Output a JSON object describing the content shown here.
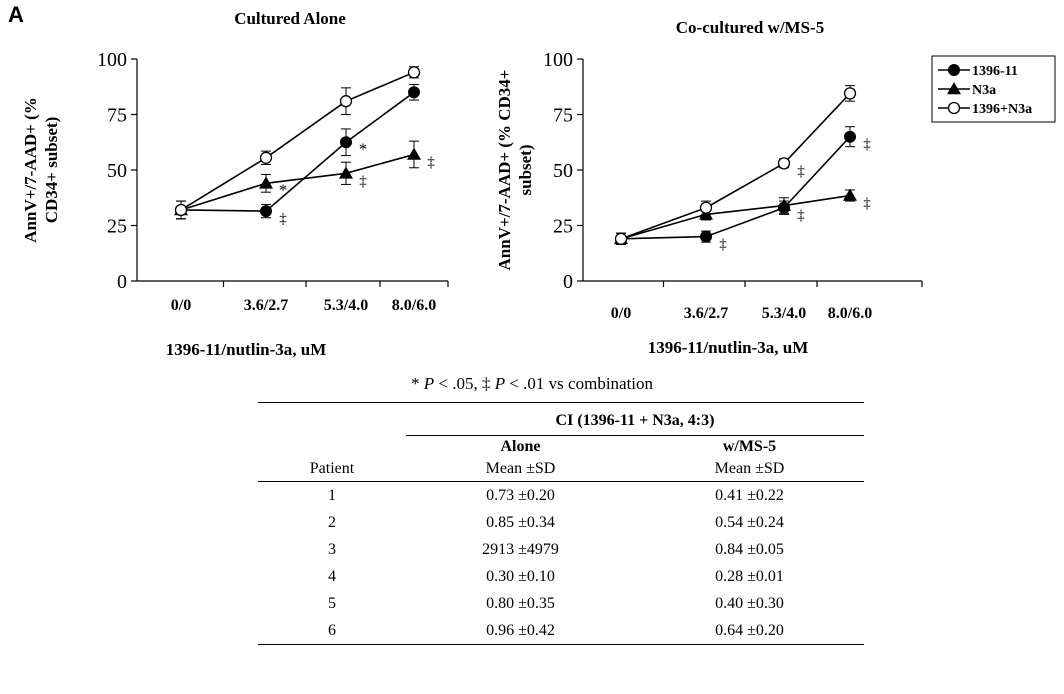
{
  "panel_letter": "A",
  "legend": {
    "entries": [
      {
        "label": "1396-11",
        "marker": "filled-circle-icon"
      },
      {
        "label": "N3a",
        "marker": "filled-triangle-icon"
      },
      {
        "label": "1396+N3a",
        "marker": "open-circle-icon"
      }
    ]
  },
  "chart_data": [
    {
      "type": "line",
      "title": "Cultured Alone",
      "xlabel": "1396-11/nutlin-3a, uM",
      "ylabel": "AnnV+/7-AAD+ (% CD34+ subset)",
      "categories": [
        "0/0",
        "3.6/2.7",
        "5.3/4.0",
        "8.0/6.0"
      ],
      "ylim": [
        0,
        100
      ],
      "yticks": [
        "0",
        "25",
        "50",
        "75",
        "100"
      ],
      "series": [
        {
          "name": "1396-11",
          "marker": "filled-circle",
          "values": [
            32,
            31.5,
            62.5,
            85
          ],
          "errors": [
            4,
            3,
            6,
            3.5
          ]
        },
        {
          "name": "N3a",
          "marker": "filled-triangle",
          "values": [
            32,
            44,
            48.5,
            57
          ],
          "errors": [
            4,
            4,
            5,
            6
          ]
        },
        {
          "name": "1396+N3a",
          "marker": "open-circle",
          "values": [
            32,
            55.5,
            81,
            94
          ],
          "errors": [
            4,
            3,
            6,
            2.5
          ]
        }
      ],
      "annotations": [
        {
          "text": "‡",
          "category": "3.6/2.7",
          "series": "1396-11"
        },
        {
          "text": "*",
          "category": "3.6/2.7",
          "series": "N3a"
        },
        {
          "text": "*",
          "category": "5.3/4.0",
          "series": "1396-11"
        },
        {
          "text": "‡",
          "category": "5.3/4.0",
          "series": "N3a"
        },
        {
          "text": "‡",
          "category": "8.0/6.0",
          "series": "N3a"
        }
      ]
    },
    {
      "type": "line",
      "title": "Co-cultured w/MS-5",
      "xlabel": "1396-11/nutlin-3a, uM",
      "ylabel": "AnnV+/7-AAD+ (% CD34+ subset)",
      "categories": [
        "0/0",
        "3.6/2.7",
        "5.3/4.0",
        "8.0/6.0"
      ],
      "ylim": [
        0,
        100
      ],
      "yticks": [
        "0",
        "25",
        "50",
        "75",
        "100"
      ],
      "series": [
        {
          "name": "1396-11",
          "marker": "filled-circle",
          "values": [
            19,
            20,
            33,
            65
          ],
          "errors": [
            2.5,
            2.5,
            3,
            4.5
          ]
        },
        {
          "name": "N3a",
          "marker": "filled-triangle",
          "values": [
            19,
            30,
            34,
            38.5
          ],
          "errors": [
            2.5,
            2.5,
            3.5,
            2.5
          ]
        },
        {
          "name": "1396+N3a",
          "marker": "open-circle",
          "values": [
            19,
            33,
            53,
            84.5
          ],
          "errors": [
            2.5,
            3,
            2,
            3.5
          ]
        }
      ],
      "annotations": [
        {
          "text": "‡",
          "category": "3.6/2.7",
          "series": "1396-11"
        },
        {
          "text": "‡",
          "category": "5.3/4.0",
          "series": "1396+N3a"
        },
        {
          "text": "‡",
          "category": "5.3/4.0",
          "series": "1396-11"
        },
        {
          "text": "‡",
          "category": "8.0/6.0",
          "series": "1396-11"
        },
        {
          "text": "‡",
          "category": "8.0/6.0",
          "series": "N3a"
        }
      ]
    }
  ],
  "footnote": {
    "star": "*",
    "p1": "P",
    "t1": " < .05, ‡ ",
    "p2": "P",
    "t2": " < .01 vs combination"
  },
  "table": {
    "group_header": "CI (1396-11 + N3a, 4:3)",
    "col_patient": "Patient",
    "col_alone": "Alone",
    "col_ms5": "w/MS-5",
    "sub_alone": "Mean ±SD",
    "sub_ms5": "Mean ±SD",
    "rows": [
      {
        "patient": "1",
        "alone": "0.73 ±0.20",
        "ms5": "0.41 ±0.22"
      },
      {
        "patient": "2",
        "alone": "0.85 ±0.34",
        "ms5": "0.54 ±0.24"
      },
      {
        "patient": "3",
        "alone": "2913 ±4979",
        "ms5": "0.84 ±0.05"
      },
      {
        "patient": "4",
        "alone": "0.30 ±0.10",
        "ms5": "0.28 ±0.01"
      },
      {
        "patient": "5",
        "alone": "0.80 ±0.35",
        "ms5": "0.40 ±0.30"
      },
      {
        "patient": "6",
        "alone": "0.96 ±0.42",
        "ms5": "0.64 ±0.20"
      }
    ]
  }
}
